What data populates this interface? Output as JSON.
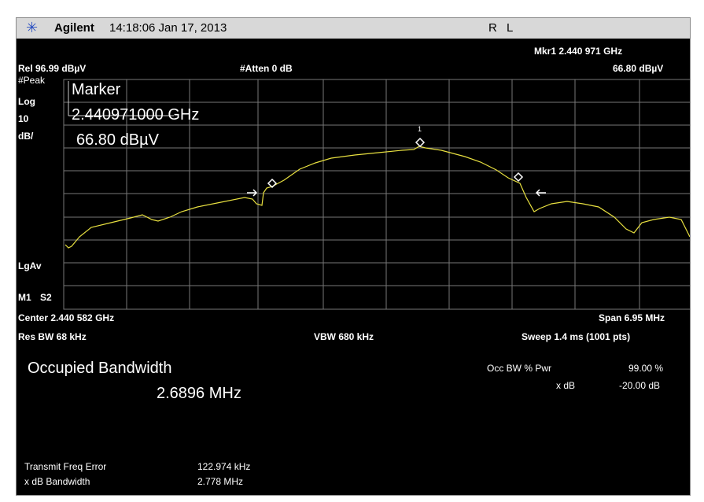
{
  "header": {
    "brand": "Agilent",
    "timestamp": "14:18:06 Jan 17, 2013",
    "mode": "R L"
  },
  "top": {
    "marker_freq": "Mkr1 2.440 971 GHz",
    "ref": "Rel 96.99 dBµV",
    "atten": "#Atten 0 dB",
    "marker_level": "66.80 dBµV"
  },
  "left": {
    "detector": "#Peak",
    "scale": "Log",
    "per_div": "10",
    "unit": "dB/",
    "avg": "LgAv",
    "m1": "M1",
    "s2": "S2"
  },
  "marker_box": {
    "title": "Marker",
    "freq": "2.440971000 GHz",
    "level": "66.80 dBµV",
    "index": "1"
  },
  "bottom": {
    "center": "Center 2.440 582 GHz",
    "span": "Span 6.95 MHz",
    "rbw": "Res BW 68 kHz",
    "vbw": "VBW 680 kHz",
    "sweep": "Sweep 1.4 ms (1001 pts)"
  },
  "results": {
    "title": "Occupied Bandwidth",
    "value": "2.6896 MHz",
    "occ_label": "Occ BW % Pwr",
    "occ_value": "99.00 %",
    "xdb_label": "x dB",
    "xdb_value": "-20.00 dB",
    "tfe_label": "Transmit Freq Error",
    "tfe_value": "122.974 kHz",
    "xbw_label": "x dB Bandwidth",
    "xbw_value": "2.778 MHz"
  }
}
